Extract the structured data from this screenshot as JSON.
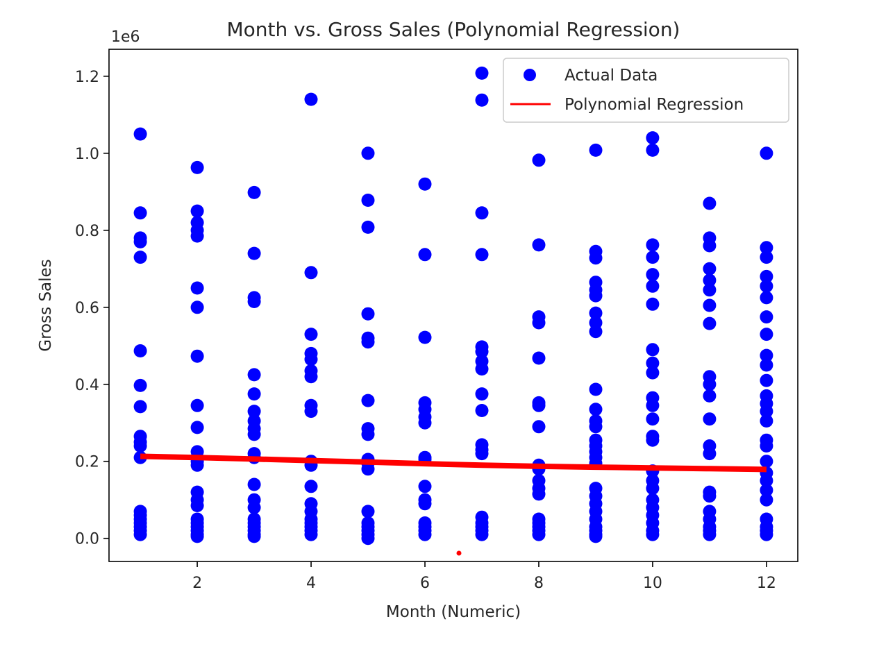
{
  "chart_data": {
    "type": "scatter",
    "title": "Month vs. Gross Sales (Polynomial Regression)",
    "xlabel": "Month (Numeric)",
    "ylabel": "Gross Sales",
    "y_offset_label": "1e6",
    "xlim": [
      0.45,
      12.55
    ],
    "ylim": [
      -0.06,
      1.27
    ],
    "x_ticks": [
      2,
      4,
      6,
      8,
      10,
      12
    ],
    "x_tick_labels": [
      "2",
      "4",
      "6",
      "8",
      "10",
      "12"
    ],
    "y_ticks": [
      0.0,
      0.2,
      0.4,
      0.6,
      0.8,
      1.0,
      1.2
    ],
    "y_tick_labels": [
      "0.0",
      "0.2",
      "0.4",
      "0.6",
      "0.8",
      "1.0",
      "1.2"
    ],
    "grid": false,
    "legend_position": "upper-right",
    "series": [
      {
        "name": "Actual Data",
        "kind": "scatter",
        "color": "#0000ff",
        "points": [
          [
            1,
            1.05
          ],
          [
            1,
            0.845
          ],
          [
            1,
            0.78
          ],
          [
            1,
            0.77
          ],
          [
            1,
            0.73
          ],
          [
            1,
            0.487
          ],
          [
            1,
            0.397
          ],
          [
            1,
            0.342
          ],
          [
            1,
            0.265
          ],
          [
            1,
            0.25
          ],
          [
            1,
            0.24
          ],
          [
            1,
            0.21
          ],
          [
            1,
            0.07
          ],
          [
            1,
            0.06
          ],
          [
            1,
            0.05
          ],
          [
            1,
            0.04
          ],
          [
            1,
            0.03
          ],
          [
            1,
            0.02
          ],
          [
            1,
            0.01
          ],
          [
            2,
            0.963
          ],
          [
            2,
            0.85
          ],
          [
            2,
            0.82
          ],
          [
            2,
            0.8
          ],
          [
            2,
            0.785
          ],
          [
            2,
            0.65
          ],
          [
            2,
            0.6
          ],
          [
            2,
            0.473
          ],
          [
            2,
            0.345
          ],
          [
            2,
            0.288
          ],
          [
            2,
            0.225
          ],
          [
            2,
            0.21
          ],
          [
            2,
            0.2
          ],
          [
            2,
            0.19
          ],
          [
            2,
            0.12
          ],
          [
            2,
            0.1
          ],
          [
            2,
            0.085
          ],
          [
            2,
            0.05
          ],
          [
            2,
            0.04
          ],
          [
            2,
            0.03
          ],
          [
            2,
            0.02
          ],
          [
            2,
            0.01
          ],
          [
            2,
            0.005
          ],
          [
            3,
            0.898
          ],
          [
            3,
            0.74
          ],
          [
            3,
            0.625
          ],
          [
            3,
            0.615
          ],
          [
            3,
            0.425
          ],
          [
            3,
            0.375
          ],
          [
            3,
            0.33
          ],
          [
            3,
            0.305
          ],
          [
            3,
            0.285
          ],
          [
            3,
            0.27
          ],
          [
            3,
            0.22
          ],
          [
            3,
            0.21
          ],
          [
            3,
            0.14
          ],
          [
            3,
            0.1
          ],
          [
            3,
            0.08
          ],
          [
            3,
            0.05
          ],
          [
            3,
            0.04
          ],
          [
            3,
            0.03
          ],
          [
            3,
            0.02
          ],
          [
            3,
            0.01
          ],
          [
            3,
            0.005
          ],
          [
            4,
            1.14
          ],
          [
            4,
            0.69
          ],
          [
            4,
            0.53
          ],
          [
            4,
            0.48
          ],
          [
            4,
            0.465
          ],
          [
            4,
            0.435
          ],
          [
            4,
            0.42
          ],
          [
            4,
            0.345
          ],
          [
            4,
            0.33
          ],
          [
            4,
            0.2
          ],
          [
            4,
            0.19
          ],
          [
            4,
            0.135
          ],
          [
            4,
            0.09
          ],
          [
            4,
            0.07
          ],
          [
            4,
            0.05
          ],
          [
            4,
            0.04
          ],
          [
            4,
            0.03
          ],
          [
            4,
            0.02
          ],
          [
            4,
            0.01
          ],
          [
            5,
            1.0
          ],
          [
            5,
            0.878
          ],
          [
            5,
            0.808
          ],
          [
            5,
            0.583
          ],
          [
            5,
            0.52
          ],
          [
            5,
            0.51
          ],
          [
            5,
            0.358
          ],
          [
            5,
            0.285
          ],
          [
            5,
            0.27
          ],
          [
            5,
            0.205
          ],
          [
            5,
            0.195
          ],
          [
            5,
            0.18
          ],
          [
            5,
            0.07
          ],
          [
            5,
            0.04
          ],
          [
            5,
            0.03
          ],
          [
            5,
            0.02
          ],
          [
            5,
            0.01
          ],
          [
            5,
            0.0
          ],
          [
            6,
            0.92
          ],
          [
            6,
            0.737
          ],
          [
            6,
            0.522
          ],
          [
            6,
            0.352
          ],
          [
            6,
            0.335
          ],
          [
            6,
            0.315
          ],
          [
            6,
            0.3
          ],
          [
            6,
            0.21
          ],
          [
            6,
            0.205
          ],
          [
            6,
            0.135
          ],
          [
            6,
            0.1
          ],
          [
            6,
            0.09
          ],
          [
            6,
            0.04
          ],
          [
            6,
            0.03
          ],
          [
            6,
            0.02
          ],
          [
            6,
            0.01
          ],
          [
            7,
            1.208
          ],
          [
            7,
            1.138
          ],
          [
            7,
            0.845
          ],
          [
            7,
            0.737
          ],
          [
            7,
            0.497
          ],
          [
            7,
            0.485
          ],
          [
            7,
            0.46
          ],
          [
            7,
            0.44
          ],
          [
            7,
            0.375
          ],
          [
            7,
            0.332
          ],
          [
            7,
            0.243
          ],
          [
            7,
            0.23
          ],
          [
            7,
            0.22
          ],
          [
            7,
            0.055
          ],
          [
            7,
            0.04
          ],
          [
            7,
            0.03
          ],
          [
            7,
            0.02
          ],
          [
            7,
            0.01
          ],
          [
            8,
            0.982
          ],
          [
            8,
            0.762
          ],
          [
            8,
            0.575
          ],
          [
            8,
            0.56
          ],
          [
            8,
            0.468
          ],
          [
            8,
            0.352
          ],
          [
            8,
            0.345
          ],
          [
            8,
            0.29
          ],
          [
            8,
            0.19
          ],
          [
            8,
            0.18
          ],
          [
            8,
            0.15
          ],
          [
            8,
            0.13
          ],
          [
            8,
            0.115
          ],
          [
            8,
            0.05
          ],
          [
            8,
            0.04
          ],
          [
            8,
            0.03
          ],
          [
            8,
            0.02
          ],
          [
            8,
            0.01
          ],
          [
            9,
            1.008
          ],
          [
            9,
            0.745
          ],
          [
            9,
            0.728
          ],
          [
            9,
            0.665
          ],
          [
            9,
            0.645
          ],
          [
            9,
            0.63
          ],
          [
            9,
            0.585
          ],
          [
            9,
            0.56
          ],
          [
            9,
            0.537
          ],
          [
            9,
            0.387
          ],
          [
            9,
            0.335
          ],
          [
            9,
            0.305
          ],
          [
            9,
            0.29
          ],
          [
            9,
            0.255
          ],
          [
            9,
            0.24
          ],
          [
            9,
            0.225
          ],
          [
            9,
            0.21
          ],
          [
            9,
            0.195
          ],
          [
            9,
            0.13
          ],
          [
            9,
            0.11
          ],
          [
            9,
            0.09
          ],
          [
            9,
            0.07
          ],
          [
            9,
            0.05
          ],
          [
            9,
            0.03
          ],
          [
            9,
            0.02
          ],
          [
            9,
            0.01
          ],
          [
            9,
            0.005
          ],
          [
            10,
            1.04
          ],
          [
            10,
            1.008
          ],
          [
            10,
            0.762
          ],
          [
            10,
            0.73
          ],
          [
            10,
            0.685
          ],
          [
            10,
            0.655
          ],
          [
            10,
            0.608
          ],
          [
            10,
            0.49
          ],
          [
            10,
            0.455
          ],
          [
            10,
            0.43
          ],
          [
            10,
            0.365
          ],
          [
            10,
            0.345
          ],
          [
            10,
            0.31
          ],
          [
            10,
            0.265
          ],
          [
            10,
            0.255
          ],
          [
            10,
            0.175
          ],
          [
            10,
            0.15
          ],
          [
            10,
            0.13
          ],
          [
            10,
            0.1
          ],
          [
            10,
            0.08
          ],
          [
            10,
            0.06
          ],
          [
            10,
            0.04
          ],
          [
            10,
            0.02
          ],
          [
            10,
            0.01
          ],
          [
            11,
            0.87
          ],
          [
            11,
            0.78
          ],
          [
            11,
            0.76
          ],
          [
            11,
            0.7
          ],
          [
            11,
            0.67
          ],
          [
            11,
            0.645
          ],
          [
            11,
            0.605
          ],
          [
            11,
            0.558
          ],
          [
            11,
            0.42
          ],
          [
            11,
            0.4
          ],
          [
            11,
            0.37
          ],
          [
            11,
            0.31
          ],
          [
            11,
            0.24
          ],
          [
            11,
            0.22
          ],
          [
            11,
            0.12
          ],
          [
            11,
            0.11
          ],
          [
            11,
            0.07
          ],
          [
            11,
            0.05
          ],
          [
            11,
            0.03
          ],
          [
            11,
            0.02
          ],
          [
            11,
            0.01
          ],
          [
            12,
            1.0
          ],
          [
            12,
            0.755
          ],
          [
            12,
            0.73
          ],
          [
            12,
            0.68
          ],
          [
            12,
            0.655
          ],
          [
            12,
            0.625
          ],
          [
            12,
            0.575
          ],
          [
            12,
            0.53
          ],
          [
            12,
            0.475
          ],
          [
            12,
            0.45
          ],
          [
            12,
            0.41
          ],
          [
            12,
            0.37
          ],
          [
            12,
            0.35
          ],
          [
            12,
            0.33
          ],
          [
            12,
            0.305
          ],
          [
            12,
            0.255
          ],
          [
            12,
            0.24
          ],
          [
            12,
            0.2
          ],
          [
            12,
            0.17
          ],
          [
            12,
            0.15
          ],
          [
            12,
            0.125
          ],
          [
            12,
            0.1
          ],
          [
            12,
            0.05
          ],
          [
            12,
            0.03
          ],
          [
            12,
            0.02
          ],
          [
            12,
            0.01
          ]
        ]
      },
      {
        "name": "Polynomial Regression",
        "kind": "line",
        "color": "#ff0000",
        "x": [
          1,
          2,
          3,
          4,
          5,
          6,
          7,
          8,
          9,
          10,
          11,
          12
        ],
        "y": [
          0.213,
          0.21,
          0.206,
          0.202,
          0.198,
          0.194,
          0.19,
          0.187,
          0.185,
          0.183,
          0.181,
          0.179
        ]
      }
    ]
  }
}
